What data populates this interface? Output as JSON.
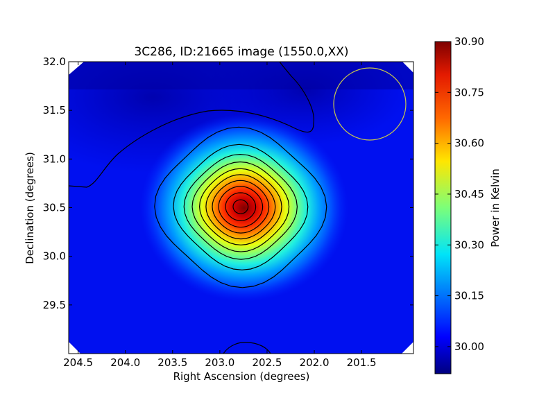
{
  "chart_data": {
    "type": "heatmap",
    "title": "3C286, ID:21665 image (1550.0,XX)",
    "xlabel": "Right Ascension (degrees)",
    "ylabel": "Declination (degrees)",
    "xlim": [
      204.6,
      200.95
    ],
    "ylim": [
      29.0,
      32.0
    ],
    "x_ticks": [
      204.5,
      204.0,
      203.5,
      203.0,
      202.5,
      202.0,
      201.5
    ],
    "x_tick_labels": [
      "204.5",
      "204.0",
      "203.5",
      "203.0",
      "202.5",
      "202.0",
      "201.5"
    ],
    "y_ticks": [
      29.5,
      30.0,
      30.5,
      31.0,
      31.5,
      32.0
    ],
    "y_tick_labels": [
      "29.5",
      "30.0",
      "30.5",
      "31.0",
      "31.5",
      "32.0"
    ],
    "peak": {
      "ra": 202.78,
      "dec": 30.51,
      "value": 30.9
    },
    "beam_circle": {
      "ra": 201.48,
      "dec": 31.56,
      "radius_deg": 0.38,
      "color": "#c8c84a"
    },
    "colorbar": {
      "label": "Power in Kelvin",
      "range": [
        29.92,
        30.9
      ],
      "ticks": [
        30.0,
        30.15,
        30.3,
        30.45,
        30.6,
        30.75,
        30.9
      ],
      "tick_labels": [
        "30.00",
        "30.15",
        "30.30",
        "30.45",
        "30.60",
        "30.75",
        "30.90"
      ],
      "colormap": "jet"
    },
    "contours": "black contour lines"
  }
}
